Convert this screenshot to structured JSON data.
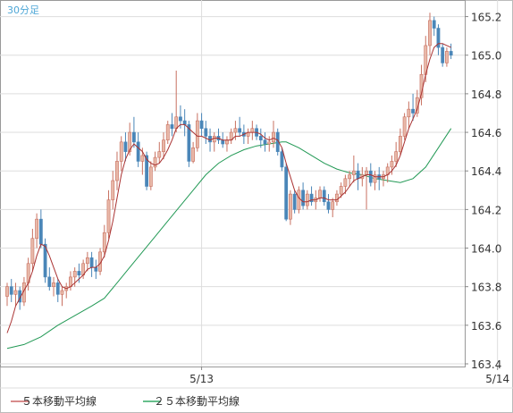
{
  "chart_data": {
    "type": "candlestick",
    "period_label": "30分足",
    "y_ticks": [
      "165.2",
      "165.0",
      "164.8",
      "164.6",
      "164.4",
      "164.2",
      "164.0",
      "163.8",
      "163.6",
      "163.4"
    ],
    "ylim": [
      163.4,
      165.3
    ],
    "x_tick_labels": [
      {
        "label": "5/13",
        "index": 46
      },
      {
        "label": "5/14",
        "index": 116
      }
    ],
    "legend": [
      {
        "label": "５本移動平均線",
        "color": "#cc6666"
      },
      {
        "label": "２５本移動平均線",
        "color": "#33aa66"
      }
    ],
    "colors": {
      "up": "#e8b8a8",
      "up_border": "#c87060",
      "down": "#4a86b8",
      "ma5": "#aa3333",
      "ma25": "#229955",
      "grid": "#dddddd",
      "axis": "#888888"
    },
    "candles": [
      [
        163.75,
        163.82,
        163.7,
        163.8
      ],
      [
        163.8,
        163.84,
        163.72,
        163.76
      ],
      [
        163.76,
        163.82,
        163.7,
        163.78
      ],
      [
        163.78,
        163.8,
        163.68,
        163.72
      ],
      [
        163.72,
        163.85,
        163.7,
        163.82
      ],
      [
        163.82,
        163.95,
        163.78,
        163.92
      ],
      [
        163.92,
        164.1,
        163.88,
        164.05
      ],
      [
        164.05,
        164.18,
        164.0,
        164.15
      ],
      [
        164.15,
        164.2,
        164.0,
        164.02
      ],
      [
        164.02,
        164.05,
        163.82,
        163.85
      ],
      [
        163.85,
        163.9,
        163.78,
        163.8
      ],
      [
        163.8,
        163.85,
        163.75,
        163.82
      ],
      [
        163.82,
        163.84,
        163.72,
        163.76
      ],
      [
        163.76,
        163.8,
        163.7,
        163.78
      ],
      [
        163.78,
        163.82,
        163.74,
        163.8
      ],
      [
        163.8,
        163.88,
        163.78,
        163.85
      ],
      [
        163.85,
        163.9,
        163.8,
        163.88
      ],
      [
        163.88,
        163.92,
        163.82,
        163.86
      ],
      [
        163.86,
        163.94,
        163.84,
        163.92
      ],
      [
        163.92,
        163.98,
        163.88,
        163.95
      ],
      [
        163.95,
        163.98,
        163.85,
        163.9
      ],
      [
        163.9,
        163.94,
        163.84,
        163.88
      ],
      [
        163.88,
        164.0,
        163.86,
        163.98
      ],
      [
        163.98,
        164.12,
        163.95,
        164.08
      ],
      [
        164.08,
        164.3,
        164.05,
        164.25
      ],
      [
        164.25,
        164.4,
        164.2,
        164.35
      ],
      [
        164.35,
        164.5,
        164.3,
        164.45
      ],
      [
        164.45,
        164.58,
        164.4,
        164.55
      ],
      [
        164.55,
        164.6,
        164.45,
        164.5
      ],
      [
        164.5,
        164.65,
        164.48,
        164.6
      ],
      [
        164.6,
        164.68,
        164.52,
        164.55
      ],
      [
        164.55,
        164.6,
        164.42,
        164.45
      ],
      [
        164.45,
        164.52,
        164.38,
        164.48
      ],
      [
        164.48,
        164.5,
        164.3,
        164.32
      ],
      [
        164.32,
        164.45,
        164.3,
        164.42
      ],
      [
        164.42,
        164.5,
        164.4,
        164.47
      ],
      [
        164.47,
        164.55,
        164.44,
        164.5
      ],
      [
        164.5,
        164.6,
        164.46,
        164.56
      ],
      [
        164.56,
        164.66,
        164.54,
        164.64
      ],
      [
        164.64,
        164.7,
        164.58,
        164.62
      ],
      [
        164.62,
        164.92,
        164.6,
        164.68
      ],
      [
        164.68,
        164.74,
        164.62,
        164.66
      ],
      [
        164.66,
        164.72,
        164.58,
        164.64
      ],
      [
        164.64,
        164.66,
        164.42,
        164.45
      ],
      [
        164.45,
        164.55,
        164.44,
        164.52
      ],
      [
        164.52,
        164.7,
        164.5,
        164.66
      ],
      [
        164.66,
        164.7,
        164.58,
        164.62
      ],
      [
        164.62,
        164.66,
        164.54,
        164.58
      ],
      [
        164.58,
        164.62,
        164.5,
        164.55
      ],
      [
        164.55,
        164.6,
        164.5,
        164.58
      ],
      [
        164.58,
        164.62,
        164.54,
        164.56
      ],
      [
        164.56,
        164.6,
        164.52,
        164.54
      ],
      [
        164.54,
        164.58,
        164.5,
        164.56
      ],
      [
        164.56,
        164.62,
        164.54,
        164.6
      ],
      [
        164.6,
        164.66,
        164.56,
        164.62
      ],
      [
        164.62,
        164.68,
        164.58,
        164.6
      ],
      [
        164.6,
        164.64,
        164.54,
        164.58
      ],
      [
        164.58,
        164.62,
        164.54,
        164.6
      ],
      [
        164.6,
        164.66,
        164.56,
        164.62
      ],
      [
        164.62,
        164.64,
        164.56,
        164.58
      ],
      [
        164.58,
        164.62,
        164.52,
        164.56
      ],
      [
        164.56,
        164.6,
        164.5,
        164.54
      ],
      [
        164.54,
        164.58,
        164.5,
        164.55
      ],
      [
        164.55,
        164.66,
        164.52,
        164.6
      ],
      [
        164.6,
        164.62,
        164.48,
        164.5
      ],
      [
        164.5,
        164.52,
        164.4,
        164.42
      ],
      [
        164.42,
        164.44,
        164.14,
        164.15
      ],
      [
        164.15,
        164.3,
        164.12,
        164.28
      ],
      [
        164.28,
        164.3,
        164.18,
        164.2
      ],
      [
        164.2,
        164.32,
        164.18,
        164.3
      ],
      [
        164.3,
        164.34,
        164.2,
        164.22
      ],
      [
        164.22,
        164.3,
        164.2,
        164.28
      ],
      [
        164.28,
        164.32,
        164.22,
        164.24
      ],
      [
        164.24,
        164.3,
        164.2,
        164.26
      ],
      [
        164.26,
        164.32,
        164.24,
        164.3
      ],
      [
        164.3,
        164.32,
        164.22,
        164.24
      ],
      [
        164.24,
        164.28,
        164.18,
        164.2
      ],
      [
        164.2,
        164.26,
        164.16,
        164.24
      ],
      [
        164.24,
        164.3,
        164.22,
        164.28
      ],
      [
        164.28,
        164.34,
        164.26,
        164.32
      ],
      [
        164.32,
        164.38,
        164.28,
        164.36
      ],
      [
        164.36,
        164.4,
        164.32,
        164.38
      ],
      [
        164.38,
        164.48,
        164.34,
        164.4
      ],
      [
        164.4,
        164.44,
        164.3,
        164.36
      ],
      [
        164.36,
        164.42,
        164.32,
        164.38
      ],
      [
        164.38,
        164.42,
        164.2,
        164.4
      ],
      [
        164.4,
        164.44,
        164.32,
        164.34
      ],
      [
        164.34,
        164.4,
        164.3,
        164.38
      ],
      [
        164.38,
        164.42,
        164.3,
        164.36
      ],
      [
        164.36,
        164.4,
        164.32,
        164.38
      ],
      [
        164.38,
        164.44,
        164.34,
        164.42
      ],
      [
        164.42,
        164.48,
        164.38,
        164.45
      ],
      [
        164.45,
        164.55,
        164.42,
        164.5
      ],
      [
        164.5,
        164.62,
        164.48,
        164.58
      ],
      [
        164.58,
        164.7,
        164.56,
        164.68
      ],
      [
        164.68,
        164.76,
        164.62,
        164.72
      ],
      [
        164.72,
        164.8,
        164.66,
        164.7
      ],
      [
        164.7,
        164.82,
        164.68,
        164.78
      ],
      [
        164.78,
        164.95,
        164.74,
        164.9
      ],
      [
        164.9,
        165.1,
        164.86,
        165.05
      ],
      [
        165.05,
        165.22,
        165.0,
        165.18
      ],
      [
        165.18,
        165.2,
        165.1,
        165.14
      ],
      [
        165.14,
        165.16,
        165.0,
        165.04
      ],
      [
        165.04,
        165.06,
        164.94,
        164.96
      ],
      [
        164.96,
        165.04,
        164.94,
        165.02
      ],
      [
        165.02,
        165.06,
        164.98,
        165.0
      ]
    ],
    "ma5": [
      [
        0,
        163.56
      ],
      [
        1,
        163.62
      ],
      [
        2,
        163.7
      ],
      [
        3,
        163.74
      ],
      [
        4,
        163.78
      ],
      [
        5,
        163.82
      ],
      [
        6,
        163.88
      ],
      [
        7,
        163.96
      ],
      [
        8,
        164.02
      ],
      [
        9,
        164.01
      ],
      [
        10,
        163.96
      ],
      [
        11,
        163.9
      ],
      [
        12,
        163.84
      ],
      [
        13,
        163.8
      ],
      [
        14,
        163.79
      ],
      [
        15,
        163.8
      ],
      [
        16,
        163.82
      ],
      [
        17,
        163.84
      ],
      [
        18,
        163.86
      ],
      [
        19,
        163.89
      ],
      [
        20,
        163.9
      ],
      [
        21,
        163.9
      ],
      [
        22,
        163.92
      ],
      [
        23,
        163.96
      ],
      [
        24,
        164.04
      ],
      [
        25,
        164.14
      ],
      [
        26,
        164.26
      ],
      [
        27,
        164.38
      ],
      [
        28,
        164.46
      ],
      [
        29,
        164.51
      ],
      [
        30,
        164.54
      ],
      [
        31,
        164.52
      ],
      [
        32,
        164.5
      ],
      [
        33,
        164.46
      ],
      [
        34,
        164.44
      ],
      [
        35,
        164.43
      ],
      [
        36,
        164.44
      ],
      [
        37,
        164.47
      ],
      [
        38,
        164.51
      ],
      [
        39,
        164.56
      ],
      [
        40,
        164.62
      ],
      [
        41,
        164.64
      ],
      [
        42,
        164.64
      ],
      [
        43,
        164.62
      ],
      [
        44,
        164.6
      ],
      [
        45,
        164.58
      ],
      [
        46,
        164.58
      ],
      [
        47,
        164.57
      ],
      [
        48,
        164.56
      ],
      [
        49,
        164.57
      ],
      [
        50,
        164.57
      ],
      [
        51,
        164.56
      ],
      [
        52,
        164.56
      ],
      [
        53,
        164.56
      ],
      [
        54,
        164.58
      ],
      [
        55,
        164.58
      ],
      [
        56,
        164.59
      ],
      [
        57,
        164.6
      ],
      [
        58,
        164.6
      ],
      [
        59,
        164.6
      ],
      [
        60,
        164.59
      ],
      [
        61,
        164.57
      ],
      [
        62,
        164.56
      ],
      [
        63,
        164.57
      ],
      [
        64,
        164.56
      ],
      [
        65,
        164.52
      ],
      [
        66,
        164.44
      ],
      [
        67,
        164.37
      ],
      [
        68,
        164.3
      ],
      [
        69,
        164.26
      ],
      [
        70,
        164.24
      ],
      [
        71,
        164.24
      ],
      [
        72,
        164.25
      ],
      [
        73,
        164.25
      ],
      [
        74,
        164.26
      ],
      [
        75,
        164.26
      ],
      [
        76,
        164.25
      ],
      [
        77,
        164.25
      ],
      [
        78,
        164.25
      ],
      [
        79,
        164.27
      ],
      [
        80,
        164.29
      ],
      [
        81,
        164.32
      ],
      [
        82,
        164.35
      ],
      [
        83,
        164.36
      ],
      [
        84,
        164.37
      ],
      [
        85,
        164.38
      ],
      [
        86,
        164.38
      ],
      [
        87,
        164.37
      ],
      [
        88,
        164.37
      ],
      [
        89,
        164.37
      ],
      [
        90,
        164.38
      ],
      [
        91,
        164.4
      ],
      [
        92,
        164.43
      ],
      [
        93,
        164.48
      ],
      [
        94,
        164.55
      ],
      [
        95,
        164.62
      ],
      [
        96,
        164.67
      ],
      [
        97,
        164.72
      ],
      [
        98,
        164.8
      ],
      [
        99,
        164.9
      ],
      [
        100,
        164.98
      ],
      [
        101,
        165.04
      ],
      [
        102,
        165.06
      ],
      [
        103,
        165.06
      ],
      [
        104,
        165.05
      ],
      [
        105,
        165.04
      ]
    ],
    "ma25": [
      [
        0,
        163.48
      ],
      [
        4,
        163.5
      ],
      [
        8,
        163.54
      ],
      [
        12,
        163.6
      ],
      [
        16,
        163.65
      ],
      [
        20,
        163.7
      ],
      [
        23,
        163.74
      ],
      [
        26,
        163.82
      ],
      [
        29,
        163.9
      ],
      [
        32,
        163.98
      ],
      [
        35,
        164.06
      ],
      [
        38,
        164.14
      ],
      [
        41,
        164.22
      ],
      [
        44,
        164.3
      ],
      [
        47,
        164.38
      ],
      [
        50,
        164.44
      ],
      [
        53,
        164.48
      ],
      [
        56,
        164.51
      ],
      [
        59,
        164.53
      ],
      [
        62,
        164.54
      ],
      [
        65,
        164.55
      ],
      [
        66,
        164.55
      ],
      [
        69,
        164.52
      ],
      [
        72,
        164.48
      ],
      [
        75,
        164.44
      ],
      [
        78,
        164.41
      ],
      [
        81,
        164.39
      ],
      [
        84,
        164.38
      ],
      [
        87,
        164.36
      ],
      [
        90,
        164.35
      ],
      [
        93,
        164.34
      ],
      [
        96,
        164.36
      ],
      [
        99,
        164.42
      ],
      [
        102,
        164.52
      ],
      [
        105,
        164.62
      ]
    ]
  }
}
